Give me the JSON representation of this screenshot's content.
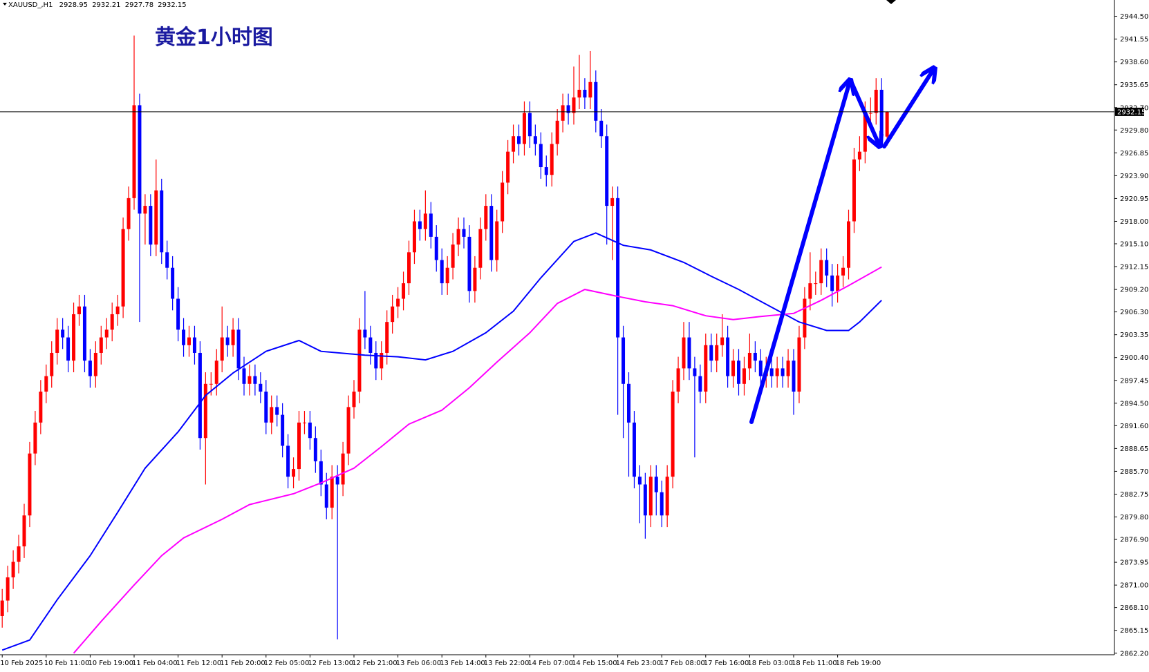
{
  "symbol": "XAUUSD_,H1",
  "chart_data": {
    "type": "candlestick",
    "title": "黄金1小时图",
    "categories": [
      "10 Feb 2025",
      null,
      null,
      null,
      null,
      null,
      null,
      null,
      "10 Feb 11:00",
      null,
      null,
      null,
      null,
      null,
      null,
      null,
      "10 Feb 19:00",
      null,
      null,
      null,
      null,
      null,
      null,
      null,
      "11 Feb 04:00",
      null,
      null,
      null,
      null,
      null,
      null,
      null,
      "11 Feb 12:00",
      null,
      null,
      null,
      null,
      null,
      null,
      null,
      "11 Feb 20:00",
      null,
      null,
      null,
      null,
      null,
      null,
      null,
      "12 Feb 05:00",
      null,
      null,
      null,
      null,
      null,
      null,
      null,
      "12 Feb 13:00",
      null,
      null,
      null,
      null,
      null,
      null,
      null,
      "12 Feb 21:00",
      null,
      null,
      null,
      null,
      null,
      null,
      null,
      "13 Feb 06:00",
      null,
      null,
      null,
      null,
      null,
      null,
      null,
      "13 Feb 14:00",
      null,
      null,
      null,
      null,
      null,
      null,
      null,
      "13 Feb 22:00",
      null,
      null,
      null,
      null,
      null,
      null,
      null,
      "14 Feb 07:00",
      null,
      null,
      null,
      null,
      null,
      null,
      null,
      "14 Feb 15:00",
      null,
      null,
      null,
      null,
      null,
      null,
      null,
      "14 Feb 23:00",
      null,
      null,
      null,
      null,
      null,
      null,
      null,
      "17 Feb 08:00",
      null,
      null,
      null,
      null,
      null,
      null,
      null,
      "17 Feb 16:00",
      null,
      null,
      null,
      null,
      null,
      null,
      null,
      "18 Feb 03:00",
      null,
      null,
      null,
      null,
      null,
      null,
      null,
      "18 Feb 11:00",
      null,
      null,
      null,
      null,
      null,
      null,
      null,
      "18 Feb 19:00",
      null,
      null,
      null,
      null,
      null,
      null,
      null,
      null,
      null
    ],
    "open": [
      2867,
      2869,
      2872,
      2874,
      2876,
      2880,
      2888,
      2892,
      2896,
      2898,
      2901,
      2904,
      2903,
      2900,
      2906,
      2907,
      2900,
      2898,
      2901,
      2903,
      2904,
      2906,
      2907,
      2917,
      2921,
      2933,
      2919,
      2920,
      2915,
      2922,
      2914,
      2912,
      2908,
      2904,
      2902,
      2903,
      2901,
      2890,
      2897,
      2897,
      2900,
      2903,
      2902,
      2904,
      2899,
      2897,
      2898,
      2897,
      2896,
      2892,
      2894,
      2893,
      2889,
      2885,
      2886,
      2892,
      2892,
      2890,
      2887,
      2884,
      2881,
      2885,
      2884,
      2888,
      2894,
      2896,
      2904,
      2903,
      2901,
      2899,
      2901,
      2905,
      2907,
      2908,
      2910,
      2914,
      2918,
      2917,
      2919,
      2916,
      2913,
      2910,
      2912,
      2915,
      2917,
      2916,
      2909,
      2912,
      2917,
      2920,
      2913,
      2918,
      2923,
      2927,
      2929,
      2928,
      2932,
      2929,
      2928,
      2925,
      2924,
      2928,
      2931,
      2933,
      2932,
      2934,
      2935,
      2934,
      2936,
      2931,
      2929,
      2920,
      2921,
      2903,
      2897,
      2892,
      2885,
      2884,
      2880,
      2885,
      2883,
      2880,
      2885,
      2896,
      2899,
      2903,
      2899,
      2898,
      2896,
      2902,
      2900,
      2902,
      2903,
      2898,
      2900,
      2897,
      2899,
      2901,
      2900,
      2898,
      2899,
      2898,
      2899,
      2898,
      2900,
      2896,
      2903,
      2908,
      2910,
      2910,
      2913,
      2911,
      2909,
      2911,
      2912,
      2918,
      2926,
      2927,
      2932,
      2932,
      2935,
      2928.95
    ],
    "high": [
      2870.5,
      2873.5,
      2875.5,
      2877.5,
      2881.5,
      2889.5,
      2893.5,
      2897.5,
      2899.5,
      2902.5,
      2905.5,
      2905.5,
      2904.5,
      2907.5,
      2908.5,
      2908.5,
      2901.5,
      2902.5,
      2904.5,
      2905.5,
      2907.5,
      2908.5,
      2918.5,
      2922.5,
      2942,
      2934.5,
      2921.5,
      2921.5,
      2926,
      2923.5,
      2915.5,
      2913.5,
      2909.5,
      2905.5,
      2904.5,
      2904.5,
      2902.5,
      2898.5,
      2898.5,
      2901.5,
      2907,
      2904.5,
      2905.5,
      2905.5,
      2900.5,
      2899.5,
      2899.5,
      2898.5,
      2897.5,
      2895.5,
      2895.5,
      2894.5,
      2890.5,
      2887.5,
      2893.5,
      2893.5,
      2893.5,
      2891.5,
      2888.5,
      2885.5,
      2886.5,
      2886.5,
      2889.5,
      2895.5,
      2897.5,
      2905.5,
      2909,
      2904.5,
      2902.5,
      2902.5,
      2906.5,
      2908.5,
      2909.5,
      2911.5,
      2915.5,
      2919.5,
      2919.5,
      2922,
      2920.5,
      2917.5,
      2914.5,
      2913.5,
      2916.5,
      2918.5,
      2918.5,
      2917.5,
      2913.5,
      2918.5,
      2921.5,
      2921.5,
      2919.5,
      2924.5,
      2928.5,
      2930.5,
      2930.5,
      2933.5,
      2933.5,
      2930.5,
      2929.5,
      2926.5,
      2929.5,
      2932.5,
      2934.5,
      2934.5,
      2938,
      2939.5,
      2936.5,
      2940,
      2937.5,
      2932.5,
      2930.5,
      2922.5,
      2922.5,
      2904.5,
      2898.5,
      2893.5,
      2886.5,
      2885.5,
      2886.5,
      2886.5,
      2884.5,
      2886.5,
      2897.5,
      2900.5,
      2905,
      2905,
      2900.5,
      2899.5,
      2903.5,
      2903.5,
      2903.5,
      2906,
      2904.5,
      2901.5,
      2901.5,
      2900.5,
      2903.5,
      2902.5,
      2901.5,
      2900.5,
      2900.5,
      2900.5,
      2900.5,
      2901.5,
      2901.5,
      2904.5,
      2909.5,
      2914,
      2911.5,
      2914.5,
      2914.5,
      2912.5,
      2912.5,
      2913.5,
      2919.5,
      2927.5,
      2929,
      2933.5,
      2934,
      2936.5,
      2936.5,
      2932.21
    ],
    "low": [
      2865.5,
      2867.5,
      2870.5,
      2872.5,
      2874.5,
      2878.5,
      2886.5,
      2890.5,
      2894.5,
      2896.5,
      2899.5,
      2901.5,
      2898.5,
      2898.5,
      2904.5,
      2898.5,
      2896.5,
      2896.5,
      2899.5,
      2901.5,
      2902.5,
      2904.5,
      2905.5,
      2915.5,
      2919.5,
      2905,
      2915,
      2913.5,
      2913.5,
      2912.5,
      2910.5,
      2906.5,
      2902.5,
      2900.5,
      2900.5,
      2899.5,
      2888.5,
      2884,
      2895.5,
      2895.5,
      2898.5,
      2900.5,
      2900.5,
      2897.5,
      2895.5,
      2895.5,
      2895.5,
      2894.5,
      2890.5,
      2890.5,
      2891.5,
      2887.5,
      2883.5,
      2883.5,
      2884.5,
      2890.5,
      2888.5,
      2885.5,
      2882.5,
      2879.5,
      2879.5,
      2864,
      2882.5,
      2886.5,
      2892.5,
      2894.5,
      2901.5,
      2899.5,
      2897.5,
      2897.5,
      2899.5,
      2903.5,
      2905.5,
      2906.5,
      2908.5,
      2912.5,
      2915.5,
      2915.5,
      2914.5,
      2911.5,
      2908.5,
      2908.5,
      2910.5,
      2913.5,
      2914.5,
      2907.5,
      2907.5,
      2910.5,
      2915.5,
      2911.5,
      2911.5,
      2916.5,
      2921.5,
      2925.5,
      2926.5,
      2926.5,
      2927.5,
      2926.5,
      2923.5,
      2922.5,
      2922.5,
      2926.5,
      2929.5,
      2930.5,
      2930.5,
      2932.5,
      2932.5,
      2932.5,
      2929.5,
      2927.5,
      2915,
      2913,
      2893,
      2890,
      2885,
      2883.5,
      2879,
      2877,
      2878.5,
      2880,
      2878.5,
      2878.5,
      2883.5,
      2894.5,
      2897.5,
      2897.5,
      2887.5,
      2894.5,
      2894.5,
      2898.5,
      2898.5,
      2900.5,
      2896.5,
      2896.5,
      2895.5,
      2895.5,
      2897.5,
      2898.5,
      2896.5,
      2896.5,
      2896.5,
      2896.5,
      2896.5,
      2896.5,
      2893,
      2894.5,
      2901.5,
      2906.5,
      2908.5,
      2908.5,
      2909.5,
      2907,
      2907.5,
      2909.5,
      2910.5,
      2916.5,
      2924.5,
      2925.5,
      2930.5,
      2930.5,
      2927.5,
      2927.78
    ],
    "close": [
      2869,
      2872,
      2874,
      2876,
      2880,
      2888,
      2892,
      2896,
      2898,
      2901,
      2904,
      2903,
      2900,
      2906,
      2907,
      2900,
      2898,
      2901,
      2903,
      2904,
      2906,
      2907,
      2917,
      2921,
      2933,
      2919,
      2920,
      2915,
      2922,
      2914,
      2912,
      2908,
      2904,
      2902,
      2903,
      2901,
      2890,
      2897,
      2897,
      2900,
      2903,
      2902,
      2904,
      2899,
      2897,
      2898,
      2897,
      2896,
      2892,
      2894,
      2893,
      2889,
      2885,
      2886,
      2892,
      2892,
      2890,
      2887,
      2884,
      2881,
      2885,
      2884,
      2888,
      2894,
      2896,
      2904,
      2903,
      2901,
      2899,
      2901,
      2905,
      2907,
      2908,
      2910,
      2914,
      2918,
      2917,
      2919,
      2916,
      2913,
      2910,
      2912,
      2915,
      2917,
      2916,
      2909,
      2912,
      2917,
      2920,
      2913,
      2918,
      2923,
      2927,
      2929,
      2928,
      2932,
      2929,
      2928,
      2925,
      2924,
      2928,
      2931,
      2933,
      2932,
      2934,
      2935,
      2934,
      2936,
      2931,
      2929,
      2920,
      2921,
      2903,
      2897,
      2892,
      2885,
      2884,
      2880,
      2885,
      2883,
      2880,
      2885,
      2896,
      2899,
      2903,
      2899,
      2898,
      2896,
      2902,
      2900,
      2902,
      2903,
      2898,
      2900,
      2897,
      2899,
      2901,
      2900,
      2898,
      2899,
      2898,
      2899,
      2898,
      2900,
      2896,
      2903,
      2908,
      2910,
      2910,
      2913,
      2911,
      2909,
      2911,
      2912,
      2918,
      2926,
      2927,
      2932,
      2932,
      2935,
      2929,
      2932.15
    ],
    "up_color": "#ff0000",
    "down_color": "#0000ff",
    "price_line_color": "#000000",
    "overlays": [
      {
        "color": "#0000ff",
        "x": [
          0,
          5,
          10,
          16,
          21,
          26,
          32,
          37,
          42,
          48,
          54,
          58,
          66,
          72,
          77,
          82,
          88,
          93,
          98,
          104,
          108,
          113,
          118,
          124,
          129,
          134,
          140,
          145,
          150,
          154,
          156,
          160
        ],
        "values": [
          2862.6,
          2863.9,
          2869.1,
          2874.8,
          2880.4,
          2886.1,
          2890.8,
          2895.5,
          2898.4,
          2901.2,
          2902.6,
          2901.2,
          2900.7,
          2900.5,
          2900.1,
          2901.2,
          2903.6,
          2906.4,
          2910.7,
          2915.4,
          2916.5,
          2914.9,
          2914.3,
          2912.7,
          2910.9,
          2909.2,
          2906.9,
          2905.0,
          2903.9,
          2903.9,
          2905.0,
          2907.8
        ]
      },
      {
        "color": "#ff00ff",
        "x": [
          13,
          18,
          24,
          29,
          33,
          40,
          45,
          53,
          58,
          64,
          69,
          74,
          80,
          85,
          90,
          96,
          101,
          106,
          112,
          117,
          122,
          128,
          133,
          138,
          144,
          149,
          154,
          160
        ],
        "values": [
          2862.2,
          2866.3,
          2871.0,
          2874.8,
          2877.1,
          2879.5,
          2881.4,
          2882.8,
          2884.2,
          2886.1,
          2888.9,
          2891.8,
          2893.6,
          2896.5,
          2899.8,
          2903.6,
          2907.4,
          2909.2,
          2908.3,
          2907.6,
          2907.1,
          2905.8,
          2905.3,
          2905.7,
          2906.1,
          2907.8,
          2909.7,
          2912.1
        ]
      }
    ],
    "ylim": [
      2862.0,
      2946.6
    ],
    "yticks": [
      {
        "value": 2944.5,
        "label": "2944.50"
      },
      {
        "value": 2941.55,
        "label": "2941.55"
      },
      {
        "value": 2938.6,
        "label": "2938.60"
      },
      {
        "value": 2935.65,
        "label": "2935.65"
      },
      {
        "value": 2932.7,
        "label": "2932.70"
      },
      {
        "value": 2929.8,
        "label": "2929.80"
      },
      {
        "value": 2926.85,
        "label": "2926.85"
      },
      {
        "value": 2923.9,
        "label": "2923.90"
      },
      {
        "value": 2920.95,
        "label": "2920.95"
      },
      {
        "value": 2918.0,
        "label": "2918.00"
      },
      {
        "value": 2915.1,
        "label": "2915.10"
      },
      {
        "value": 2912.15,
        "label": "2912.15"
      },
      {
        "value": 2909.2,
        "label": "2909.20"
      },
      {
        "value": 2906.3,
        "label": "2906.30"
      },
      {
        "value": 2903.35,
        "label": "2903.35"
      },
      {
        "value": 2900.4,
        "label": "2900.40"
      },
      {
        "value": 2897.45,
        "label": "2897.45"
      },
      {
        "value": 2894.5,
        "label": "2894.50"
      },
      {
        "value": 2891.6,
        "label": "2891.60"
      },
      {
        "value": 2888.65,
        "label": "2888.65"
      },
      {
        "value": 2885.7,
        "label": "2885.70"
      },
      {
        "value": 2882.75,
        "label": "2882.75"
      },
      {
        "value": 2879.8,
        "label": "2879.80"
      },
      {
        "value": 2876.9,
        "label": "2876.90"
      },
      {
        "value": 2873.95,
        "label": "2873.95"
      },
      {
        "value": 2871.0,
        "label": "2871.00"
      },
      {
        "value": 2868.1,
        "label": "2868.10"
      },
      {
        "value": 2865.15,
        "label": "2865.15"
      },
      {
        "value": 2862.2,
        "label": "2862.20"
      }
    ]
  }
}
